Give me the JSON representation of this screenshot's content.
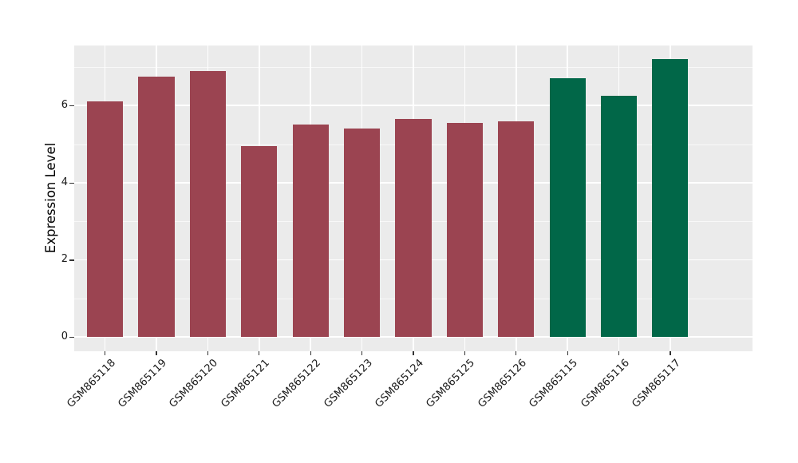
{
  "chart_data": {
    "type": "bar",
    "title": "",
    "ylabel": "Expression Level",
    "xlabel": "",
    "categories": [
      "GSM865118",
      "GSM865119",
      "GSM865120",
      "GSM865121",
      "GSM865122",
      "GSM865123",
      "GSM865124",
      "GSM865125",
      "GSM865126",
      "GSM865115",
      "GSM865116",
      "GSM865117"
    ],
    "values": [
      6.1,
      6.75,
      6.9,
      4.95,
      5.5,
      5.4,
      5.65,
      5.55,
      5.6,
      6.7,
      6.25,
      7.2
    ],
    "bar_colors": [
      "#9B4451",
      "#9B4451",
      "#9B4451",
      "#9B4451",
      "#9B4451",
      "#9B4451",
      "#9B4451",
      "#9B4451",
      "#9B4451",
      "#016748",
      "#016748",
      "#016748"
    ],
    "group_colors": {
      "red_group": "#9B4451",
      "green_group": "#016748"
    },
    "yticks": [
      0,
      2,
      4,
      6
    ],
    "minor_gridlines": [
      1,
      3,
      5,
      7
    ],
    "ylim": [
      -0.37,
      7.56
    ],
    "grid": true,
    "legend": false,
    "plot_background": "#EBEBEB",
    "gridline_color": "#FFFFFF"
  }
}
